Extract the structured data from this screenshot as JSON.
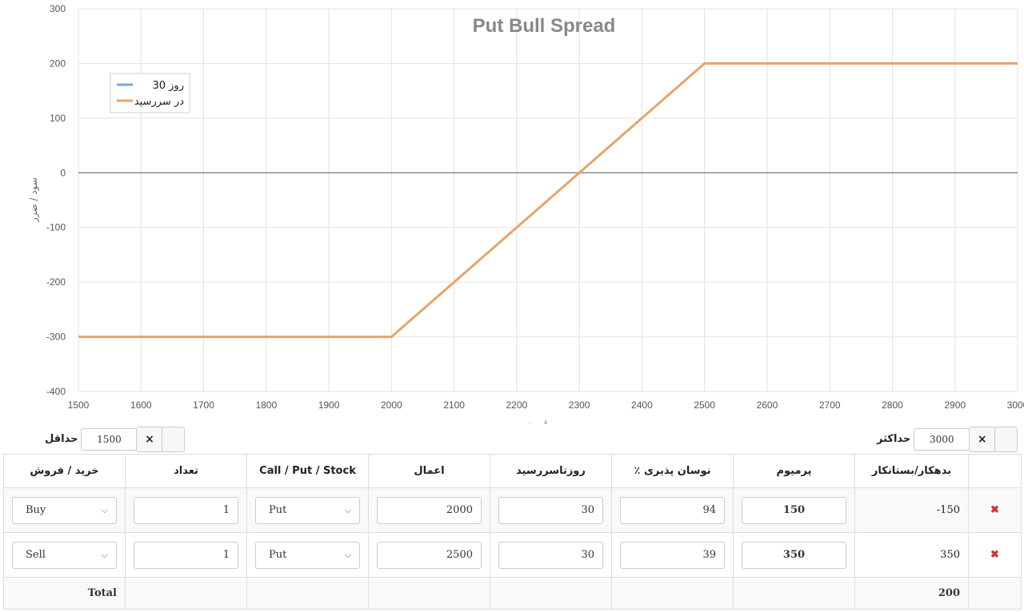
{
  "chart_data": {
    "type": "line",
    "title": "Put Bull Spread",
    "xlabel": "قیمت",
    "ylabel": "سود / ضرر",
    "xlim": [
      1500,
      3000
    ],
    "ylim": [
      -400,
      300
    ],
    "x_ticks": [
      1500,
      1600,
      1700,
      1800,
      1900,
      2000,
      2100,
      2200,
      2300,
      2400,
      2500,
      2600,
      2700,
      2800,
      2900,
      3000
    ],
    "y_ticks": [
      -400,
      -300,
      -200,
      -100,
      0,
      100,
      200,
      300
    ],
    "grid": true,
    "legend_position": "top-left",
    "series": [
      {
        "name": "30 روز",
        "color": "#7ba7d0",
        "x": [],
        "y": []
      },
      {
        "name": "در سررسید",
        "color": "#e8a468",
        "x": [
          1500,
          2000,
          2500,
          3000
        ],
        "y": [
          -300,
          -300,
          200,
          200
        ]
      }
    ]
  },
  "controls": {
    "min_label": "حداقل",
    "min_value": "1500",
    "max_label": "حداکثر",
    "max_value": "3000",
    "clear_icon": "×"
  },
  "table": {
    "headers": {
      "side": "خرید / فروش",
      "quantity": "تعداد",
      "type": "Call / Put / Stock",
      "strike": "اعمال",
      "days": "روزتاسررسید",
      "volatility": "٪ نوسان پذیری",
      "premium": "پرمیوم",
      "debit_credit": "بدهکار/بستانکار"
    },
    "rows": [
      {
        "side": "Buy",
        "quantity": "1",
        "type": "Put",
        "strike": "2000",
        "days": "30",
        "volatility": "94",
        "premium": "150",
        "amount": "-150"
      },
      {
        "side": "Sell",
        "quantity": "1",
        "type": "Put",
        "strike": "2500",
        "days": "30",
        "volatility": "39",
        "premium": "350",
        "amount": "350"
      }
    ],
    "delete_icon": "✖",
    "chevron_icon": "⌵",
    "total_label": "Total",
    "total_value": "200"
  }
}
